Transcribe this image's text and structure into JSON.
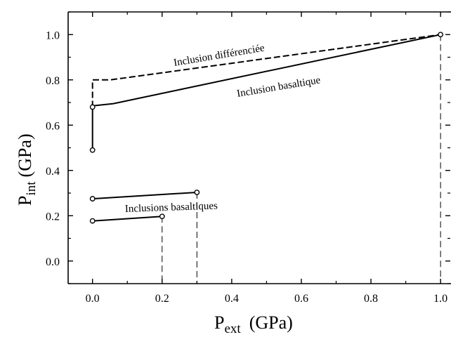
{
  "chart_data": {
    "type": "line",
    "xlabel": {
      "main": "P",
      "sub": "ext",
      "unit": "(GPa)"
    },
    "ylabel": {
      "main": "P",
      "sub": "int",
      "unit": "(GPa)"
    },
    "xlim": [
      -0.07,
      1.03
    ],
    "ylim": [
      -0.1,
      1.1
    ],
    "x_ticks": [
      "0.0",
      "0.2",
      "0.4",
      "0.6",
      "0.8",
      "1.0"
    ],
    "x_tick_values": [
      0,
      0.2,
      0.4,
      0.6,
      0.8,
      1.0
    ],
    "y_ticks": [
      "0.0",
      "0.2",
      "0.4",
      "0.6",
      "0.8",
      "1.0"
    ],
    "y_tick_values": [
      0,
      0.2,
      0.4,
      0.6,
      0.8,
      1.0
    ],
    "grid": false,
    "series": [
      {
        "name": "Inclusion différenciée",
        "style": "dashed",
        "points": [
          [
            0.0,
            0.68
          ],
          [
            0.0,
            0.8
          ],
          [
            0.05,
            0.8
          ],
          [
            0.1,
            0.81
          ],
          [
            1.0,
            1.0
          ]
        ]
      },
      {
        "name": "Inclusion basaltique",
        "style": "solid",
        "points": [
          [
            0.0,
            0.49
          ],
          [
            0.0,
            0.685
          ],
          [
            0.06,
            0.695
          ],
          [
            1.0,
            1.0
          ]
        ]
      },
      {
        "name": "Inclusions basaltiques",
        "style": "solid",
        "points": [
          [
            0.0,
            0.275
          ],
          [
            0.3,
            0.303
          ]
        ]
      },
      {
        "name": "Inclusions basaltiques",
        "style": "solid",
        "points": [
          [
            0.0,
            0.177
          ],
          [
            0.2,
            0.197
          ]
        ]
      }
    ],
    "markers": [
      [
        0.0,
        0.68
      ],
      [
        0.0,
        0.49
      ],
      [
        1.0,
        1.0
      ],
      [
        0.0,
        0.275
      ],
      [
        0.3,
        0.303
      ],
      [
        0.0,
        0.177
      ],
      [
        0.2,
        0.197
      ]
    ],
    "drop_lines": [
      [
        0.2,
        0.197
      ],
      [
        0.3,
        0.303
      ],
      [
        1.0,
        1.0
      ]
    ],
    "annotations": [
      {
        "text": "Inclusion différenciée"
      },
      {
        "text": "Inclusion basaltique"
      },
      {
        "text": "Inclusions basaltiques"
      }
    ]
  }
}
